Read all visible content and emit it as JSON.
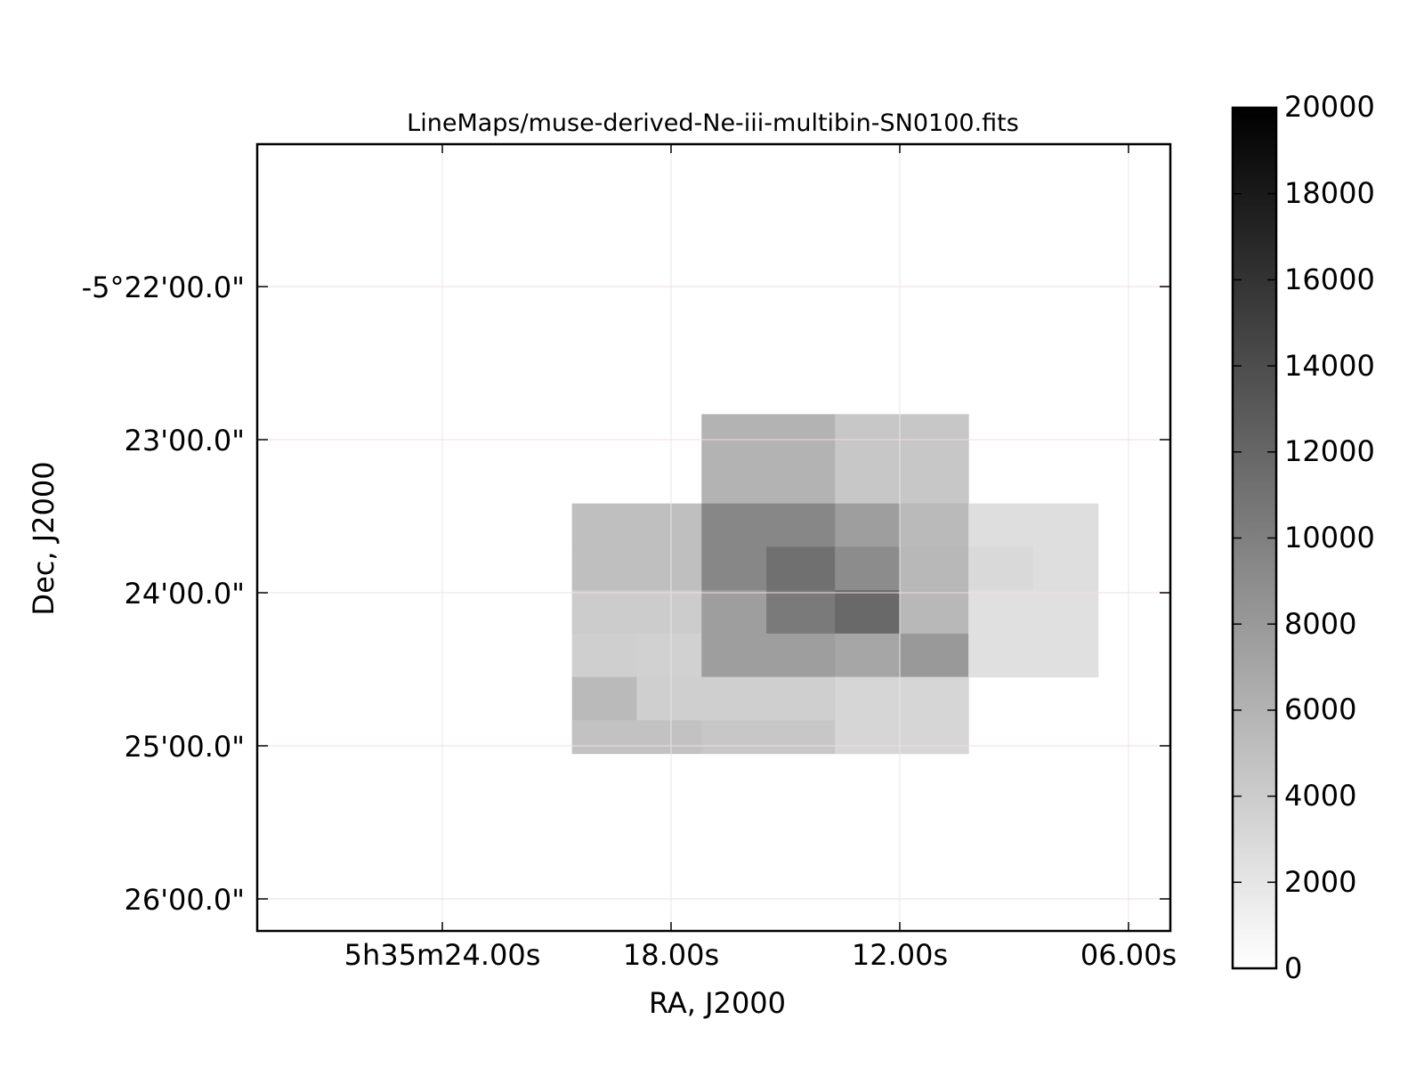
{
  "chart_data": {
    "type": "heatmap",
    "title": "LineMaps/muse-derived-Ne-iii-multibin-SN0100.fits",
    "xlabel": "RA, J2000",
    "ylabel": "Dec, J2000",
    "x_tick_labels": [
      "5h35m24.00s",
      "18.00s",
      "12.00s",
      "06.00s"
    ],
    "y_tick_labels": [
      "-5°22'00.0\"",
      "23'00.0\"",
      "24'00.0\"",
      "25'00.0\"",
      "26'00.0\""
    ],
    "colorbar": {
      "min": 0,
      "max": 20000,
      "colormap": "gray_r",
      "tick_labels": [
        "0",
        "2000",
        "4000",
        "6000",
        "8000",
        "10000",
        "12000",
        "14000",
        "16000",
        "18000",
        "20000"
      ]
    },
    "grid": true,
    "cells": [
      {
        "ra_s": [
          17.2,
          13.7
        ],
        "dec_s": [
          -1370,
          -1405
        ],
        "value": 6000
      },
      {
        "ra_s": [
          13.7,
          10.2
        ],
        "dec_s": [
          -1370,
          -1405
        ],
        "value": 4400
      },
      {
        "ra_s": [
          20.6,
          17.2
        ],
        "dec_s": [
          -1405,
          -1422
        ],
        "value": 5000
      },
      {
        "ra_s": [
          17.2,
          13.7
        ],
        "dec_s": [
          -1405,
          -1422
        ],
        "value": 9400
      },
      {
        "ra_s": [
          13.7,
          12.0
        ],
        "dec_s": [
          -1405,
          -1422
        ],
        "value": 7600
      },
      {
        "ra_s": [
          12.0,
          10.2
        ],
        "dec_s": [
          -1405,
          -1422
        ],
        "value": 5400
      },
      {
        "ra_s": [
          10.2,
          6.8
        ],
        "dec_s": [
          -1405,
          -1422
        ],
        "value": 2600
      },
      {
        "ra_s": [
          20.6,
          17.2
        ],
        "dec_s": [
          -1422,
          -1439
        ],
        "value": 5000
      },
      {
        "ra_s": [
          17.2,
          15.5
        ],
        "dec_s": [
          -1422,
          -1439
        ],
        "value": 9400
      },
      {
        "ra_s": [
          15.5,
          13.7
        ],
        "dec_s": [
          -1422,
          -1439
        ],
        "value": 11200
      },
      {
        "ra_s": [
          13.7,
          12.0
        ],
        "dec_s": [
          -1422,
          -1439
        ],
        "value": 9000
      },
      {
        "ra_s": [
          12.0,
          10.2
        ],
        "dec_s": [
          -1422,
          -1439
        ],
        "value": 5600
      },
      {
        "ra_s": [
          10.2,
          8.5
        ],
        "dec_s": [
          -1422,
          -1439
        ],
        "value": 3000
      },
      {
        "ra_s": [
          8.5,
          6.8
        ],
        "dec_s": [
          -1422,
          -1439
        ],
        "value": 2600
      },
      {
        "ra_s": [
          20.6,
          17.2
        ],
        "dec_s": [
          -1439,
          -1456
        ],
        "value": 4000
      },
      {
        "ra_s": [
          17.2,
          15.5
        ],
        "dec_s": [
          -1439,
          -1456
        ],
        "value": 7600
      },
      {
        "ra_s": [
          15.5,
          13.7
        ],
        "dec_s": [
          -1439,
          -1456
        ],
        "value": 10400
      },
      {
        "ra_s": [
          13.7,
          12.0
        ],
        "dec_s": [
          -1439,
          -1456
        ],
        "value": 11800
      },
      {
        "ra_s": [
          12.0,
          10.2
        ],
        "dec_s": [
          -1439,
          -1456
        ],
        "value": 5600
      },
      {
        "ra_s": [
          10.2,
          6.8
        ],
        "dec_s": [
          -1439,
          -1456
        ],
        "value": 2400
      },
      {
        "ra_s": [
          20.6,
          18.9
        ],
        "dec_s": [
          -1456,
          -1473
        ],
        "value": 3800
      },
      {
        "ra_s": [
          18.9,
          17.2
        ],
        "dec_s": [
          -1456,
          -1473
        ],
        "value": 3600
      },
      {
        "ra_s": [
          17.2,
          13.7
        ],
        "dec_s": [
          -1456,
          -1473
        ],
        "value": 7600
      },
      {
        "ra_s": [
          13.7,
          12.0
        ],
        "dec_s": [
          -1456,
          -1473
        ],
        "value": 7000
      },
      {
        "ra_s": [
          12.0,
          10.2
        ],
        "dec_s": [
          -1456,
          -1473
        ],
        "value": 8000
      },
      {
        "ra_s": [
          10.2,
          6.8
        ],
        "dec_s": [
          -1456,
          -1473
        ],
        "value": 2400
      },
      {
        "ra_s": [
          20.6,
          18.9
        ],
        "dec_s": [
          -1473,
          -1490
        ],
        "value": 5400
      },
      {
        "ra_s": [
          18.9,
          13.7
        ],
        "dec_s": [
          -1473,
          -1490
        ],
        "value": 3800
      },
      {
        "ra_s": [
          13.7,
          10.2
        ],
        "dec_s": [
          -1473,
          -1490
        ],
        "value": 3200
      },
      {
        "ra_s": [
          20.6,
          17.2
        ],
        "dec_s": [
          -1490,
          -1503
        ],
        "value": 4800
      },
      {
        "ra_s": [
          17.2,
          13.7
        ],
        "dec_s": [
          -1490,
          -1503
        ],
        "value": 4400
      },
      {
        "ra_s": [
          13.7,
          10.2
        ],
        "dec_s": [
          -1490,
          -1503
        ],
        "value": 3200
      }
    ]
  }
}
